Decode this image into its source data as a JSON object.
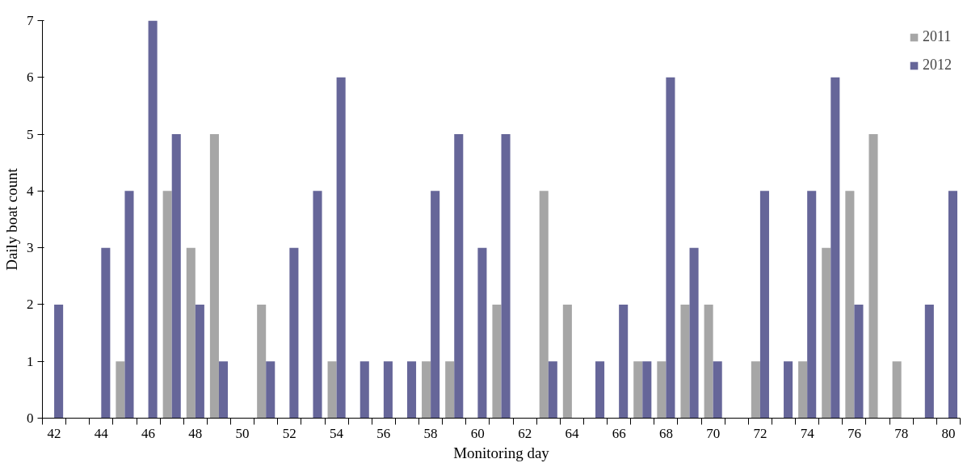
{
  "chart_data": {
    "type": "bar",
    "xlabel": "Monitoring day",
    "ylabel": "Daily boat count",
    "categories": [
      "42",
      null,
      "44",
      null,
      "46",
      null,
      "48",
      null,
      "50",
      null,
      "52",
      null,
      "54",
      null,
      "56",
      null,
      "58",
      null,
      "60",
      null,
      "62",
      null,
      "64",
      null,
      "66",
      null,
      "68",
      null,
      "70",
      null,
      "72",
      null,
      "74",
      null,
      "76",
      null,
      "78",
      null,
      "80"
    ],
    "series": [
      {
        "name": "2011",
        "color": "#a6a6a6",
        "values": [
          0,
          0,
          0,
          1,
          0,
          4,
          3,
          5,
          0,
          2,
          0,
          0,
          1,
          0,
          0,
          0,
          1,
          1,
          0,
          2,
          0,
          4,
          2,
          0,
          0,
          1,
          1,
          2,
          2,
          0,
          1,
          0,
          1,
          3,
          4,
          5,
          1,
          0,
          0
        ]
      },
      {
        "name": "2012",
        "color": "#666699",
        "values": [
          2,
          0,
          3,
          4,
          7,
          5,
          2,
          1,
          0,
          1,
          3,
          4,
          6,
          1,
          1,
          1,
          4,
          5,
          3,
          5,
          0,
          1,
          0,
          1,
          2,
          1,
          6,
          3,
          1,
          0,
          4,
          1,
          4,
          6,
          2,
          0,
          0,
          2,
          4
        ]
      }
    ],
    "ylim": [
      0,
      7
    ],
    "yticks": [
      0,
      1,
      2,
      3,
      4,
      5,
      6,
      7
    ],
    "grid": false,
    "legend": "top right"
  }
}
